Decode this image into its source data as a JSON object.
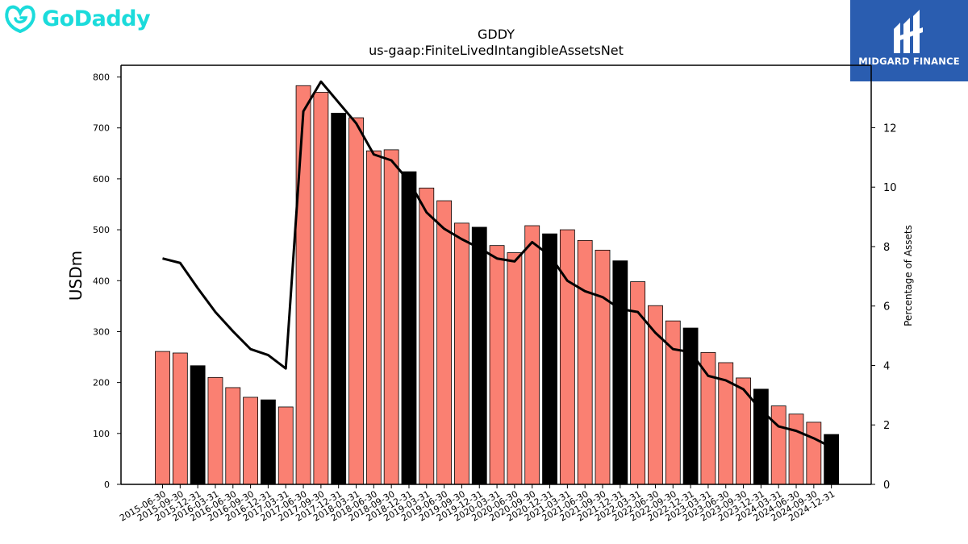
{
  "brand": {
    "name": "GoDaddy",
    "color": "#1bdbdb"
  },
  "partner": {
    "name": "MIDGARD FINANCE",
    "bg_color": "#2a5db0"
  },
  "chart_data": {
    "type": "bar",
    "title": "GDDY",
    "subtitle": "us-gaap:FiniteLivedIntangibleAssetsNet",
    "ylabel": "USDm",
    "y2label": "Percentage of Assets",
    "ylim": [
      0,
      823
    ],
    "y2lim": [
      0,
      14.1
    ],
    "yticks": [
      0,
      100,
      200,
      300,
      400,
      500,
      600,
      700,
      800
    ],
    "y2ticks": [
      0,
      2,
      4,
      6,
      8,
      10,
      12
    ],
    "colors": {
      "quarter": "#fa8072",
      "year_end": "#000000",
      "line": "#000000"
    },
    "categories": [
      "2015-06-30",
      "2015-09-30",
      "2015-12-31",
      "2016-03-31",
      "2016-06-30",
      "2016-09-30",
      "2016-12-31",
      "2017-03-31",
      "2017-06-30",
      "2017-09-30",
      "2017-12-31",
      "2018-03-31",
      "2018-06-30",
      "2018-09-30",
      "2018-12-31",
      "2019-03-31",
      "2019-06-30",
      "2019-09-30",
      "2019-12-31",
      "2020-03-31",
      "2020-06-30",
      "2020-09-30",
      "2020-12-31",
      "2021-03-31",
      "2021-06-30",
      "2021-09-30",
      "2021-12-31",
      "2022-03-31",
      "2022-06-30",
      "2022-09-30",
      "2022-12-31",
      "2023-03-31",
      "2023-06-30",
      "2023-09-30",
      "2023-12-31",
      "2024-03-31",
      "2024-06-30",
      "2024-09-30",
      "2024-12-31"
    ],
    "series": [
      {
        "type": "bar",
        "values": [
          261,
          258,
          233,
          210,
          190,
          171,
          166,
          152,
          783,
          770,
          729,
          720,
          655,
          657,
          614,
          582,
          557,
          513,
          505,
          469,
          455,
          508,
          492,
          500,
          479,
          460,
          439,
          398,
          351,
          321,
          307,
          259,
          239,
          209,
          187,
          154,
          138,
          122,
          98
        ]
      },
      {
        "type": "line",
        "axis": "right",
        "values": [
          7.6,
          7.45,
          6.6,
          5.8,
          5.15,
          4.55,
          4.35,
          3.9,
          12.55,
          13.55,
          12.85,
          12.15,
          11.1,
          10.9,
          10.2,
          9.15,
          8.6,
          8.25,
          7.95,
          7.6,
          7.5,
          8.15,
          7.7,
          6.85,
          6.5,
          6.3,
          5.9,
          5.8,
          5.1,
          4.55,
          4.45,
          3.65,
          3.5,
          3.2,
          2.5,
          1.95,
          1.8,
          1.55,
          1.25
        ]
      }
    ]
  }
}
